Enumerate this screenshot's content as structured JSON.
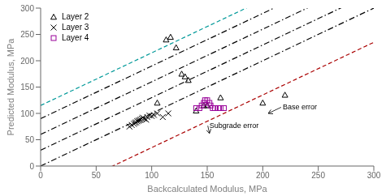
{
  "chart_data": {
    "type": "scatter",
    "xlabel": "Backcalculated Modulus, MPa",
    "ylabel": "Predicted Modulus, MPa",
    "xlim": [
      0,
      300
    ],
    "ylim": [
      0,
      300
    ],
    "xticks": [
      0,
      50,
      100,
      150,
      200,
      250,
      300
    ],
    "yticks": [
      0,
      50,
      100,
      150,
      200,
      250,
      300
    ],
    "grid": false,
    "legend": "upper left",
    "series": [
      {
        "name": "Layer 2",
        "type": "scatter",
        "marker": "triangle",
        "color": "black",
        "x": [
          105,
          113,
          117,
          122,
          127,
          130,
          133,
          140,
          147,
          150,
          162,
          200,
          220
        ],
        "values": [
          120,
          240,
          245,
          225,
          175,
          170,
          163,
          105,
          115,
          115,
          130,
          120,
          135
        ]
      },
      {
        "name": "Layer 3",
        "type": "scatter",
        "marker": "x",
        "color": "black",
        "x": [
          80,
          82,
          84,
          85,
          86,
          87,
          88,
          89,
          90,
          91,
          92,
          93,
          95,
          96,
          98,
          100,
          102,
          105,
          110,
          115
        ],
        "values": [
          75,
          78,
          80,
          82,
          83,
          85,
          86,
          87,
          88,
          90,
          92,
          90,
          88,
          93,
          96,
          95,
          97,
          100,
          93,
          100
        ]
      },
      {
        "name": "Layer 4",
        "type": "scatter",
        "marker": "square",
        "color": "#990099",
        "x": [
          140,
          143,
          145,
          147,
          148,
          150,
          152,
          153,
          155,
          157,
          160,
          162,
          165
        ],
        "values": [
          110,
          110,
          115,
          120,
          125,
          125,
          120,
          115,
          110,
          110,
          110,
          110,
          110
        ]
      }
    ],
    "lines": [
      {
        "type": "line",
        "slope": 1.0,
        "intercept": 115,
        "color": "#009999",
        "line_style": "dashed"
      },
      {
        "type": "line",
        "slope": 1.0,
        "intercept": 0,
        "color": "black",
        "line_style": "dashdot"
      },
      {
        "type": "line",
        "slope": 1.0,
        "intercept": 30,
        "color": "black",
        "line_style": "dashdot"
      },
      {
        "type": "line",
        "slope": 1.0,
        "intercept": 60,
        "color": "black",
        "line_style": "dashdot"
      },
      {
        "type": "line",
        "slope": 1.0,
        "intercept": 90,
        "color": "black",
        "line_style": "dashdot"
      },
      {
        "type": "line",
        "slope": 1.0,
        "intercept": -65,
        "color": "#aa0000",
        "line_style": "dashed"
      }
    ],
    "annotations": [
      {
        "text": "Base error",
        "x": 218,
        "y": 107,
        "arrow_x": 205,
        "arrow_y": 100
      },
      {
        "text": "Subgrade error",
        "x": 152,
        "y": 72,
        "arrow_x": 152,
        "arrow_y": 62
      }
    ]
  }
}
